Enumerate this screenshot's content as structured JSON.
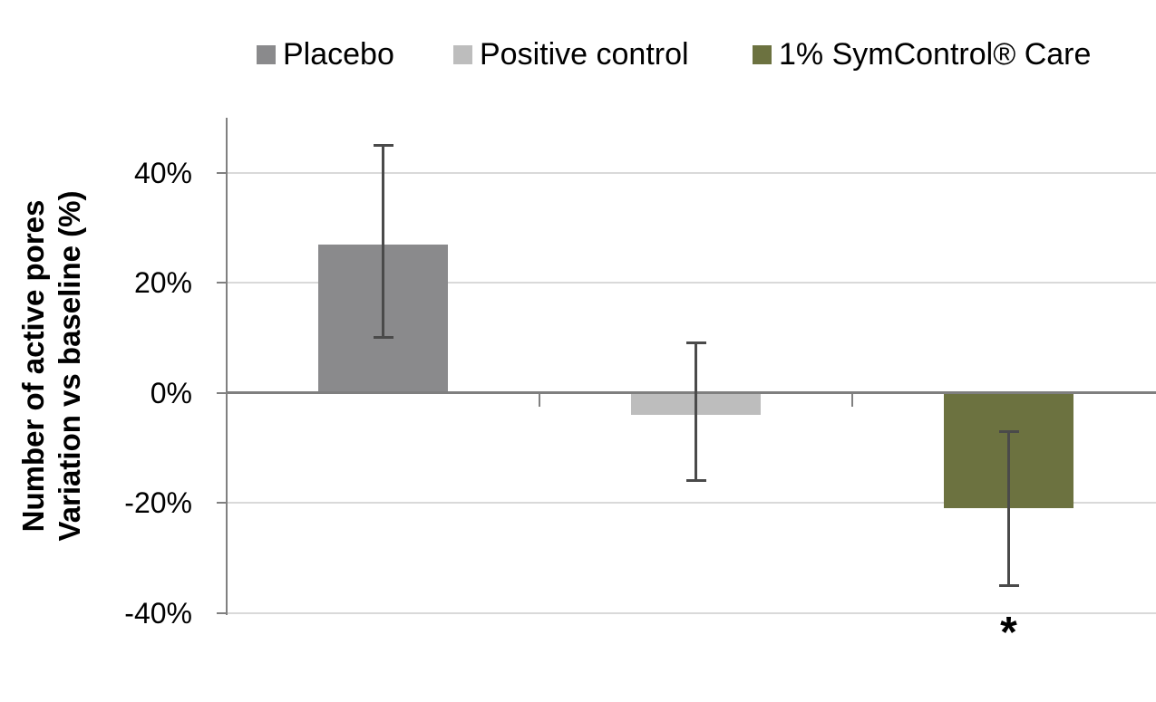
{
  "legend": {
    "items": [
      {
        "label": "Placebo",
        "color": "#8A8A8C"
      },
      {
        "label": "Positive control",
        "color": "#BDBDBD"
      },
      {
        "label": "1% SymControl® Care",
        "color": "#6C7240"
      }
    ]
  },
  "chart_data": {
    "type": "bar",
    "categories": [
      "Placebo",
      "Positive control",
      "1% SymControl® Care"
    ],
    "values": [
      27,
      -4,
      -21
    ],
    "error_high": [
      45,
      9,
      -7
    ],
    "error_low": [
      10,
      -16,
      -35
    ],
    "bar_colors": [
      "#8A8A8C",
      "#BDBDBD",
      "#6C7240"
    ],
    "ylabel_line1": "Number of active pores",
    "ylabel_line2": "Variation vs baseline (%)",
    "yticks": [
      40,
      20,
      0,
      -20,
      -40
    ],
    "ytick_labels": [
      "40%",
      "20%",
      "0%",
      "-20%",
      "-40%"
    ],
    "ylim": [
      -40,
      50
    ],
    "grid": true,
    "legend_position": "top",
    "annotations": [
      {
        "category_index": 2,
        "text": "*"
      }
    ]
  },
  "colors": {
    "gridline": "#D9D9D9",
    "zero_line": "#7F7F7F",
    "axis_line": "#808080",
    "error_bar": "#4A4A4A",
    "text": "#000000"
  }
}
